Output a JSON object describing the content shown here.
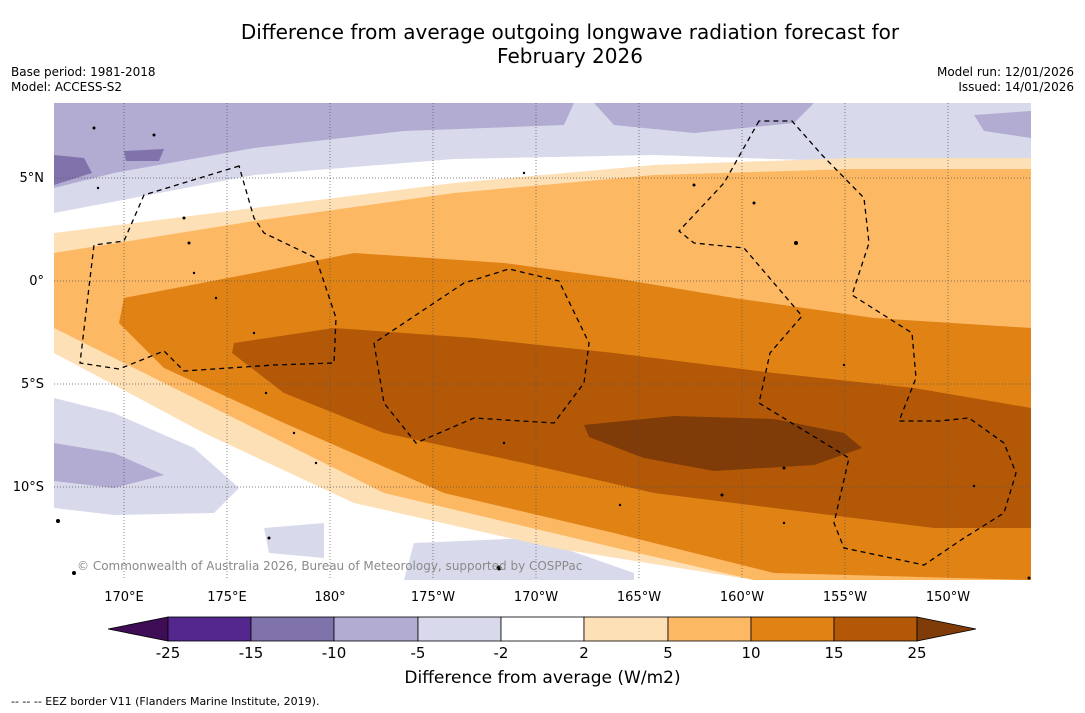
{
  "title_line1": "Difference from average outgoing longwave radiation forecast for",
  "title_line2": "February 2026",
  "meta_left": [
    "Base period: 1981-2018",
    "Model: ACCESS-S2"
  ],
  "meta_right": [
    "Model run: 12/01/2026",
    "Issued: 14/01/2026"
  ],
  "lat_labels": [
    "5°N",
    "0°",
    "5°S",
    "10°S"
  ],
  "lon_labels": [
    "170°E",
    "175°E",
    "180°",
    "175°W",
    "170°W",
    "165°W",
    "160°W",
    "155°W",
    "150°W"
  ],
  "copyright": "© Commonwealth of Australia 2026, Bureau of Meteorology, supported by COSPPac",
  "colorbar": {
    "ticks": [
      "-25",
      "-15",
      "-10",
      "-5",
      "-2",
      "2",
      "5",
      "10",
      "15",
      "25"
    ],
    "colors": [
      "#3f0d56",
      "#54278f",
      "#8073ac",
      "#b2abd2",
      "#d8daeb",
      "#ffffff",
      "#fee0b6",
      "#fdb863",
      "#e08214",
      "#b35806",
      "#7f3b08"
    ],
    "label": "Difference from average (W/m2)"
  },
  "legend_text": "--  --  -- EEZ border V11 (Flanders Marine Institute, 2019)."
}
